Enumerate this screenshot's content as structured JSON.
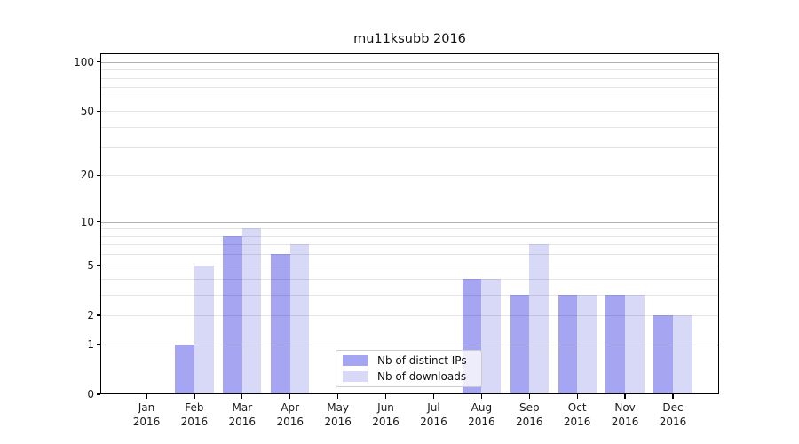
{
  "title": "mu11ksubb 2016",
  "chart_data": {
    "type": "bar",
    "title": "mu11ksubb 2016",
    "categories": [
      "Jan 2016",
      "Feb 2016",
      "Mar 2016",
      "Apr 2016",
      "May 2016",
      "Jun 2016",
      "Jul 2016",
      "Aug 2016",
      "Sep 2016",
      "Oct 2016",
      "Nov 2016",
      "Dec 2016"
    ],
    "month_labels": [
      "Jan",
      "Feb",
      "Mar",
      "Apr",
      "May",
      "Jun",
      "Jul",
      "Aug",
      "Sep",
      "Oct",
      "Nov",
      "Dec"
    ],
    "year_label": "2016",
    "series": [
      {
        "name": "Nb of distinct IPs",
        "color": "#a5a5f1",
        "values": [
          0,
          1,
          8,
          6,
          0,
          0,
          0,
          4,
          3,
          3,
          3,
          2
        ]
      },
      {
        "name": "Nb of downloads",
        "color": "#d8d8f7",
        "values": [
          0,
          5,
          9,
          7,
          0,
          0,
          0,
          4,
          7,
          3,
          3,
          2
        ]
      }
    ],
    "yscale": "log1p",
    "ylim": [
      0,
      113
    ],
    "y_ticks": [
      0,
      1,
      2,
      5,
      10,
      20,
      50,
      100
    ],
    "y_major_gridlines": [
      1,
      10,
      100
    ],
    "y_minor_gridlines": [
      2,
      3,
      4,
      5,
      6,
      7,
      8,
      9,
      20,
      30,
      40,
      50,
      60,
      70,
      80,
      90
    ],
    "grid": "horizontal",
    "legend_position": "lower-center"
  },
  "legend": {
    "items": [
      {
        "label": "Nb of distinct IPs",
        "color": "#a5a5f1"
      },
      {
        "label": "Nb of downloads",
        "color": "#d8d8f7"
      }
    ]
  },
  "colors": {
    "background": "#ffffff",
    "bar_distinct_ips": "#a5a5f1",
    "bar_downloads": "#d8d8f7",
    "grid_major": "rgba(0,0,0,0.30)",
    "grid_minor": "rgba(0,0,0,0.10)",
    "axis": "#000000",
    "text": "#1a1a1a",
    "legend_border": "#cccccc"
  }
}
